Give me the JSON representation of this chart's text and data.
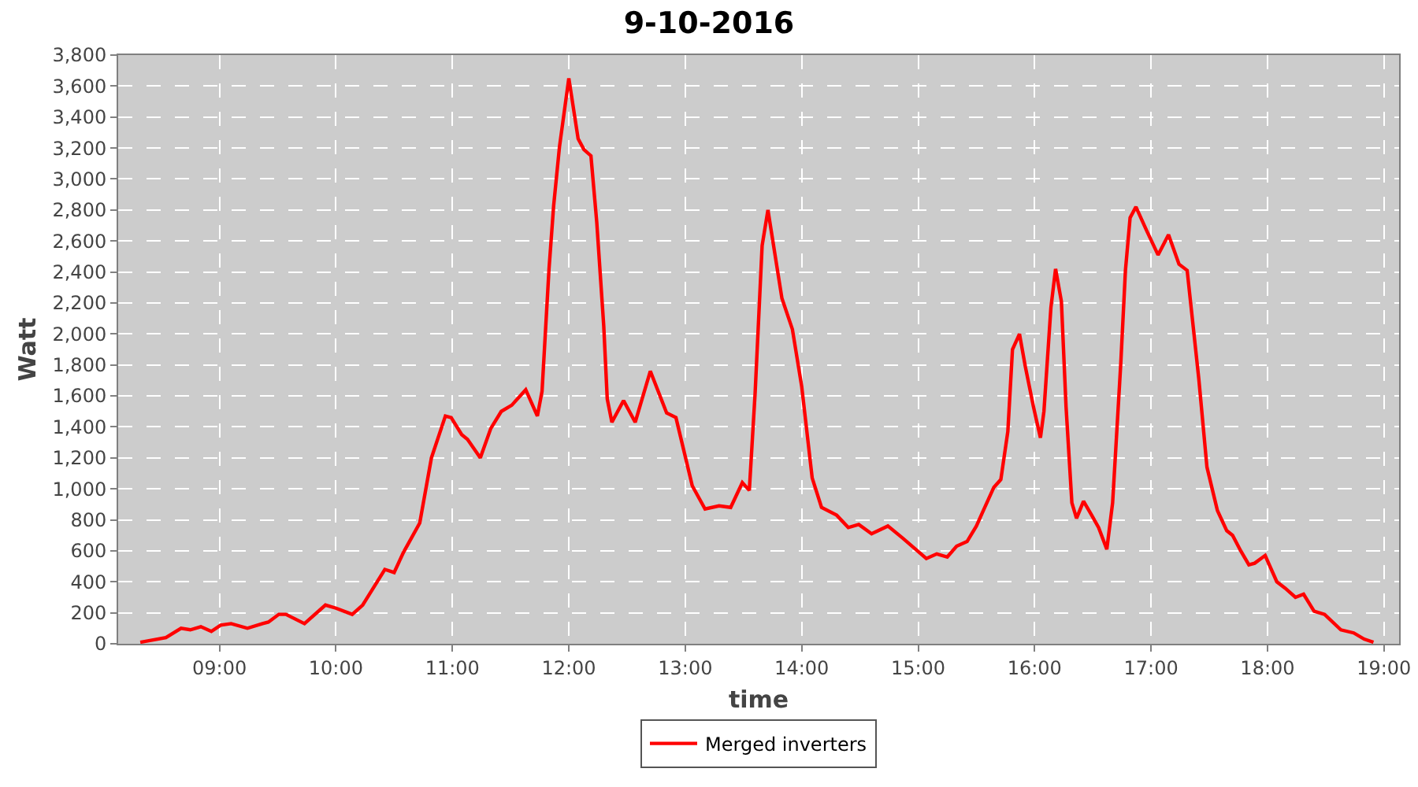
{
  "chart_data": {
    "type": "line",
    "title": "9-10-2016",
    "xlabel": "time",
    "ylabel": "Watt",
    "x": [
      8.32,
      8.54,
      8.67,
      8.75,
      8.84,
      8.93,
      9.01,
      9.1,
      9.24,
      9.37,
      9.42,
      9.51,
      9.57,
      9.73,
      9.91,
      10.0,
      10.14,
      10.23,
      10.42,
      10.5,
      10.58,
      10.72,
      10.82,
      10.94,
      10.99,
      11.08,
      11.13,
      11.24,
      11.33,
      11.42,
      11.51,
      11.63,
      11.73,
      11.77,
      11.83,
      11.87,
      11.92,
      12.0,
      12.08,
      12.13,
      12.19,
      12.24,
      12.3,
      12.33,
      12.37,
      12.47,
      12.57,
      12.7,
      12.84,
      12.92,
      13.06,
      13.17,
      13.29,
      13.39,
      13.49,
      13.55,
      13.6,
      13.66,
      13.71,
      13.83,
      13.92,
      14.0,
      14.09,
      14.17,
      14.3,
      14.4,
      14.49,
      14.6,
      14.74,
      14.87,
      15.07,
      15.16,
      15.25,
      15.33,
      15.42,
      15.5,
      15.56,
      15.65,
      15.71,
      15.77,
      15.81,
      15.87,
      15.92,
      15.99,
      16.05,
      16.08,
      16.14,
      16.18,
      16.23,
      16.27,
      16.32,
      16.36,
      16.42,
      16.49,
      16.55,
      16.62,
      16.67,
      16.74,
      16.78,
      16.82,
      16.87,
      16.96,
      17.06,
      17.15,
      17.24,
      17.31,
      17.41,
      17.48,
      17.57,
      17.65,
      17.7,
      17.77,
      17.84,
      17.89,
      17.98,
      18.08,
      18.15,
      18.24,
      18.31,
      18.4,
      18.49,
      18.63,
      18.74,
      18.83,
      18.91
    ],
    "series": [
      {
        "name": "Merged inverters",
        "color": "#ff0000",
        "values": [
          10,
          40,
          100,
          90,
          110,
          80,
          120,
          130,
          100,
          130,
          140,
          190,
          190,
          130,
          250,
          230,
          190,
          250,
          480,
          460,
          590,
          780,
          1200,
          1470,
          1460,
          1350,
          1320,
          1200,
          1390,
          1500,
          1540,
          1640,
          1470,
          1630,
          2420,
          2830,
          3210,
          3650,
          3260,
          3190,
          3150,
          2720,
          2050,
          1580,
          1430,
          1570,
          1430,
          1760,
          1490,
          1460,
          1020,
          870,
          890,
          880,
          1040,
          990,
          1620,
          2570,
          2800,
          2230,
          2030,
          1660,
          1070,
          880,
          830,
          750,
          770,
          710,
          760,
          680,
          550,
          580,
          560,
          630,
          660,
          760,
          860,
          1010,
          1060,
          1370,
          1900,
          2000,
          1790,
          1530,
          1330,
          1500,
          2170,
          2420,
          2210,
          1530,
          910,
          810,
          920,
          830,
          750,
          610,
          910,
          1810,
          2410,
          2750,
          2820,
          2670,
          2510,
          2640,
          2450,
          2410,
          1710,
          1140,
          860,
          730,
          700,
          600,
          510,
          520,
          570,
          400,
          360,
          300,
          320,
          210,
          190,
          90,
          70,
          30,
          10
        ]
      }
    ],
    "xlim": [
      8.13,
      19.13
    ],
    "xticks": [
      {
        "value": 9,
        "label": "09:00"
      },
      {
        "value": 10,
        "label": "10:00"
      },
      {
        "value": 11,
        "label": "11:00"
      },
      {
        "value": 12,
        "label": "12:00"
      },
      {
        "value": 13,
        "label": "13:00"
      },
      {
        "value": 14,
        "label": "14:00"
      },
      {
        "value": 15,
        "label": "15:00"
      },
      {
        "value": 16,
        "label": "16:00"
      },
      {
        "value": 17,
        "label": "17:00"
      },
      {
        "value": 18,
        "label": "18:00"
      },
      {
        "value": 19,
        "label": "19:00"
      }
    ],
    "ylim": [
      0,
      3800
    ],
    "yticks": [
      0,
      200,
      400,
      600,
      800,
      {
        "value": 1000,
        "label": "1,000"
      },
      {
        "value": 1200,
        "label": "1,200"
      },
      {
        "value": 1400,
        "label": "1,400"
      },
      {
        "value": 1600,
        "label": "1,600"
      },
      {
        "value": 1800,
        "label": "1,800"
      },
      {
        "value": 2000,
        "label": "2,000"
      },
      {
        "value": 2200,
        "label": "2,200"
      },
      {
        "value": 2400,
        "label": "2,400"
      },
      {
        "value": 2600,
        "label": "2,600"
      },
      {
        "value": 2800,
        "label": "2,800"
      },
      {
        "value": 3000,
        "label": "3,000"
      },
      {
        "value": 3200,
        "label": "3,200"
      },
      {
        "value": 3400,
        "label": "3,400"
      },
      {
        "value": 3600,
        "label": "3,600"
      },
      {
        "value": 3800,
        "label": "3,800"
      }
    ],
    "grid": true,
    "legend": "bottom"
  }
}
